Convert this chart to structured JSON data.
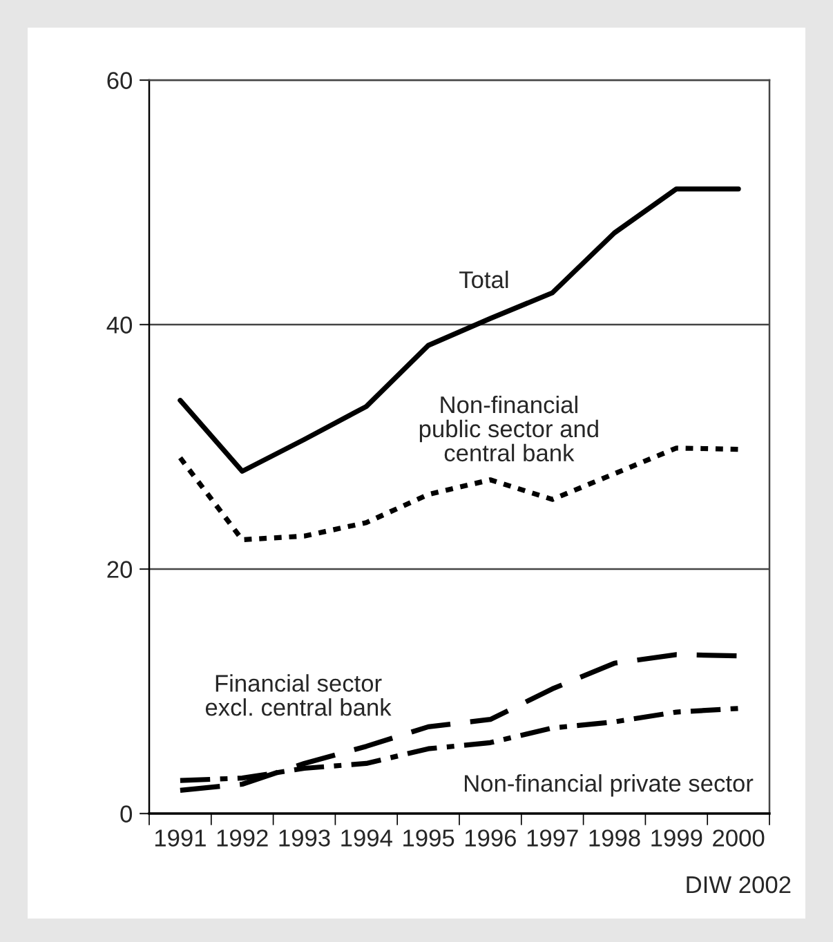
{
  "chart_data": {
    "type": "line",
    "categories": [
      "1991",
      "1992",
      "1993",
      "1994",
      "1995",
      "1996",
      "1997",
      "1998",
      "1999",
      "2000"
    ],
    "series": [
      {
        "name": "Total",
        "color": "#000000",
        "line_style": "solid",
        "values": [
          33.8,
          28.0,
          30.6,
          33.3,
          38.3,
          40.5,
          42.6,
          47.5,
          51.1,
          51.1
        ]
      },
      {
        "name": "Non-financial\npublic sector and\ncentral bank",
        "color": "#000000",
        "line_style": "dotted",
        "values": [
          29.1,
          22.4,
          22.7,
          23.8,
          26.1,
          27.3,
          25.7,
          27.8,
          29.9,
          29.8
        ]
      },
      {
        "name": "Financial sector\nexcl. central bank",
        "color": "#000000",
        "line_style": "dashed",
        "values": [
          1.9,
          2.4,
          4.1,
          5.5,
          7.1,
          7.7,
          10.2,
          12.3,
          13.0,
          12.9
        ]
      },
      {
        "name": "Non-financial private sector",
        "color": "#000000",
        "line_style": "dashdot",
        "values": [
          2.7,
          2.9,
          3.7,
          4.1,
          5.3,
          5.8,
          7.0,
          7.5,
          8.3,
          8.6
        ]
      }
    ],
    "ylim": [
      0,
      60
    ],
    "yticks": [
      0,
      20,
      40,
      60
    ],
    "grid": "y",
    "legend": false,
    "annotations": [
      "DIW 2002"
    ]
  }
}
